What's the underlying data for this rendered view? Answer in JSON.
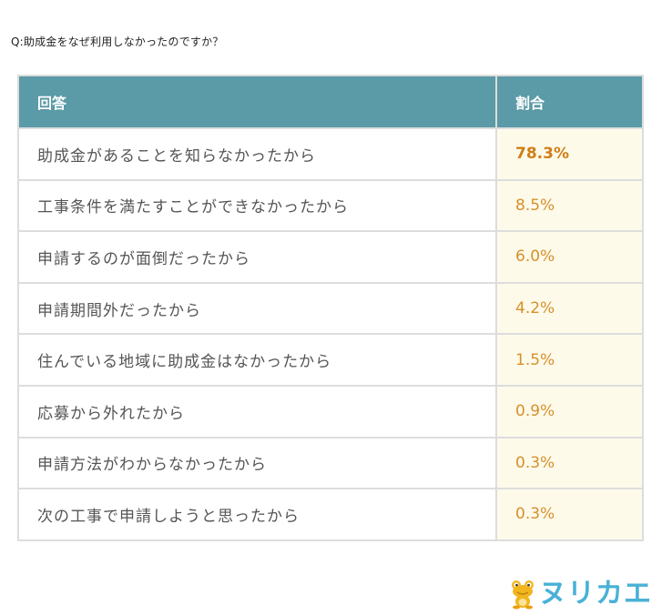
{
  "question": "Q:助成金をなぜ利用しなかったのですか？",
  "table": {
    "header": {
      "answer": "回答",
      "ratio": "割合"
    },
    "rows": [
      {
        "answer": "助成金があることを知らなかったから",
        "ratio": "78.3%"
      },
      {
        "answer": "工事条件を満たすことができなかったから",
        "ratio": "8.5%"
      },
      {
        "answer": "申請するのが面倒だったから",
        "ratio": "6.0%"
      },
      {
        "answer": "申請期間外だったから",
        "ratio": "4.2%"
      },
      {
        "answer": "住んでいる地域に助成金はなかったから",
        "ratio": "1.5%"
      },
      {
        "answer": "応募から外れたから",
        "ratio": "0.9%"
      },
      {
        "answer": "申請方法がわからなかったから",
        "ratio": "0.3%"
      },
      {
        "answer": "次の工事で申請しようと思ったから",
        "ratio": "0.3%"
      }
    ]
  },
  "brand": {
    "name": "ヌリカエ",
    "icon": "frog-icon"
  },
  "colors": {
    "header_bg": "#5b9aa7",
    "ratio_bg": "#fdfaea",
    "ratio_text": "#d7902a",
    "brand": "#49b1d6"
  }
}
